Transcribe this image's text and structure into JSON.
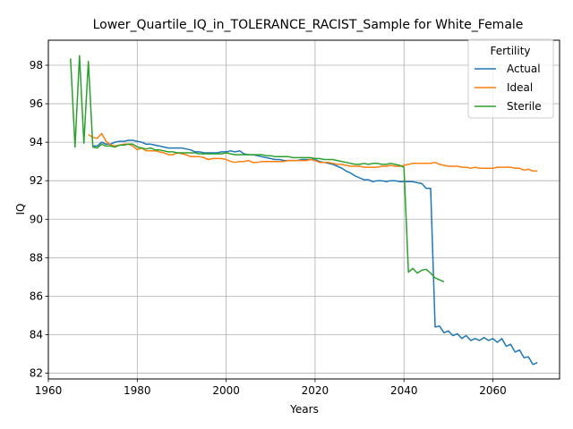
{
  "chart_data": {
    "type": "line",
    "title": "Lower_Quartile_IQ_in_TOLERANCE_RACIST_Sample for White_Female",
    "xlabel": "Years",
    "ylabel": "IQ",
    "xlim": [
      1960,
      2075
    ],
    "ylim": [
      81.7,
      99.3
    ],
    "xticks": [
      1960,
      1980,
      2000,
      2020,
      2040,
      2060
    ],
    "yticks": [
      82,
      84,
      86,
      88,
      90,
      92,
      94,
      96,
      98
    ],
    "grid": true,
    "legend": {
      "title": "Fertility",
      "placement": "top-right"
    },
    "series": [
      {
        "name": "Actual",
        "color": "#1f77b4",
        "x": [
          1970,
          1971,
          1972,
          1973,
          1974,
          1975,
          1976,
          1977,
          1978,
          1979,
          1980,
          1981,
          1982,
          1983,
          1984,
          1985,
          1986,
          1987,
          1988,
          1989,
          1990,
          1991,
          1992,
          1993,
          1994,
          1995,
          1996,
          1997,
          1998,
          1999,
          2000,
          2001,
          2002,
          2003,
          2004,
          2005,
          2006,
          2007,
          2008,
          2009,
          2010,
          2011,
          2012,
          2013,
          2014,
          2015,
          2016,
          2017,
          2018,
          2019,
          2020,
          2021,
          2022,
          2023,
          2024,
          2025,
          2026,
          2027,
          2028,
          2029,
          2030,
          2031,
          2032,
          2033,
          2034,
          2035,
          2036,
          2037,
          2038,
          2039,
          2040,
          2041,
          2042,
          2043,
          2044,
          2045,
          2046,
          2047,
          2048,
          2049,
          2050,
          2051,
          2052,
          2053,
          2054,
          2055,
          2056,
          2057,
          2058,
          2059,
          2060,
          2061,
          2062,
          2063,
          2064,
          2065,
          2066,
          2067,
          2068,
          2069,
          2070
        ],
        "values": [
          93.8,
          93.8,
          94.0,
          93.9,
          93.9,
          94.0,
          94.05,
          94.05,
          94.1,
          94.1,
          94.05,
          94.0,
          93.9,
          93.9,
          93.85,
          93.8,
          93.75,
          93.7,
          93.7,
          93.7,
          93.7,
          93.65,
          93.6,
          93.5,
          93.5,
          93.45,
          93.45,
          93.45,
          93.45,
          93.5,
          93.5,
          93.55,
          93.5,
          93.55,
          93.4,
          93.35,
          93.35,
          93.3,
          93.25,
          93.2,
          93.15,
          93.1,
          93.1,
          93.05,
          93.05,
          93.05,
          93.05,
          93.1,
          93.1,
          93.1,
          93.1,
          93.0,
          92.95,
          92.9,
          92.85,
          92.75,
          92.65,
          92.5,
          92.4,
          92.25,
          92.15,
          92.05,
          92.05,
          91.95,
          92.0,
          92.0,
          91.95,
          92.0,
          92.0,
          91.95,
          91.95,
          91.95,
          91.95,
          91.9,
          91.85,
          91.6,
          91.6,
          84.4,
          84.45,
          84.1,
          84.2,
          83.95,
          84.05,
          83.8,
          83.95,
          83.7,
          83.8,
          83.7,
          83.85,
          83.7,
          83.8,
          83.6,
          83.8,
          83.4,
          83.5,
          83.1,
          83.2,
          82.8,
          82.85,
          82.45,
          82.55
        ]
      },
      {
        "name": "Ideal",
        "color": "#ff7f0e",
        "x": [
          1969,
          1970,
          1971,
          1972,
          1973,
          1974,
          1975,
          1976,
          1977,
          1978,
          1979,
          1980,
          1981,
          1982,
          1983,
          1984,
          1985,
          1986,
          1987,
          1988,
          1989,
          1990,
          1991,
          1992,
          1993,
          1994,
          1995,
          1996,
          1997,
          1998,
          1999,
          2000,
          2001,
          2002,
          2003,
          2004,
          2005,
          2006,
          2007,
          2008,
          2009,
          2010,
          2011,
          2012,
          2013,
          2014,
          2015,
          2016,
          2017,
          2018,
          2019,
          2020,
          2021,
          2022,
          2023,
          2024,
          2025,
          2026,
          2027,
          2028,
          2029,
          2030,
          2031,
          2032,
          2033,
          2034,
          2035,
          2036,
          2037,
          2038,
          2039,
          2040,
          2041,
          2042,
          2043,
          2044,
          2045,
          2046,
          2047,
          2048,
          2049,
          2050,
          2051,
          2052,
          2053,
          2054,
          2055,
          2056,
          2057,
          2058,
          2059,
          2060,
          2061,
          2062,
          2063,
          2064,
          2065,
          2066,
          2067,
          2068,
          2069,
          2070
        ],
        "values": [
          94.4,
          94.25,
          94.2,
          94.45,
          94.05,
          93.85,
          93.8,
          93.85,
          93.9,
          93.9,
          93.8,
          93.6,
          93.7,
          93.55,
          93.55,
          93.55,
          93.5,
          93.45,
          93.35,
          93.35,
          93.45,
          93.4,
          93.35,
          93.25,
          93.25,
          93.25,
          93.2,
          93.1,
          93.15,
          93.15,
          93.15,
          93.1,
          93.0,
          92.95,
          93.0,
          93.0,
          93.05,
          92.95,
          92.95,
          93.0,
          93.0,
          93.0,
          93.0,
          93.0,
          93.0,
          93.05,
          93.05,
          93.05,
          93.05,
          93.05,
          93.1,
          93.05,
          92.95,
          92.95,
          92.95,
          92.9,
          92.85,
          92.85,
          92.8,
          92.75,
          92.75,
          92.75,
          92.7,
          92.7,
          92.7,
          92.7,
          92.75,
          92.75,
          92.8,
          92.75,
          92.75,
          92.8,
          92.85,
          92.9,
          92.9,
          92.9,
          92.9,
          92.9,
          92.95,
          92.85,
          92.8,
          92.75,
          92.75,
          92.75,
          92.7,
          92.7,
          92.65,
          92.7,
          92.65,
          92.65,
          92.65,
          92.65,
          92.7,
          92.7,
          92.7,
          92.7,
          92.65,
          92.65,
          92.55,
          92.6,
          92.5,
          92.5
        ]
      },
      {
        "name": "Sterile",
        "color": "#2ca02c",
        "x": [
          1965,
          1966,
          1967,
          1968,
          1969,
          1970,
          1971,
          1972,
          1973,
          1974,
          1975,
          1976,
          1977,
          1978,
          1979,
          1980,
          1981,
          1982,
          1983,
          1984,
          1985,
          1986,
          1987,
          1988,
          1989,
          1990,
          1991,
          1992,
          1993,
          1994,
          1995,
          1996,
          1997,
          1998,
          1999,
          2000,
          2001,
          2002,
          2003,
          2004,
          2005,
          2006,
          2007,
          2008,
          2009,
          2010,
          2011,
          2012,
          2013,
          2014,
          2015,
          2016,
          2017,
          2018,
          2019,
          2020,
          2021,
          2022,
          2023,
          2024,
          2025,
          2026,
          2027,
          2028,
          2029,
          2030,
          2031,
          2032,
          2033,
          2034,
          2035,
          2036,
          2037,
          2038,
          2039,
          2040,
          2041,
          2042,
          2043,
          2044,
          2045,
          2046,
          2047,
          2048,
          2049
        ],
        "values": [
          98.35,
          93.75,
          98.5,
          93.95,
          98.2,
          93.75,
          93.7,
          93.9,
          93.8,
          93.8,
          93.75,
          93.85,
          93.85,
          93.9,
          93.9,
          93.75,
          93.7,
          93.65,
          93.7,
          93.6,
          93.6,
          93.55,
          93.5,
          93.5,
          93.45,
          93.45,
          93.45,
          93.45,
          93.45,
          93.4,
          93.4,
          93.4,
          93.4,
          93.4,
          93.4,
          93.45,
          93.4,
          93.35,
          93.35,
          93.35,
          93.35,
          93.35,
          93.35,
          93.35,
          93.3,
          93.3,
          93.25,
          93.25,
          93.25,
          93.25,
          93.2,
          93.2,
          93.2,
          93.2,
          93.2,
          93.15,
          93.15,
          93.1,
          93.1,
          93.1,
          93.05,
          93.0,
          92.95,
          92.9,
          92.85,
          92.85,
          92.9,
          92.85,
          92.9,
          92.9,
          92.85,
          92.85,
          92.9,
          92.85,
          92.8,
          92.7,
          87.25,
          87.45,
          87.2,
          87.35,
          87.4,
          87.2,
          86.95,
          86.85,
          86.75
        ]
      }
    ]
  }
}
